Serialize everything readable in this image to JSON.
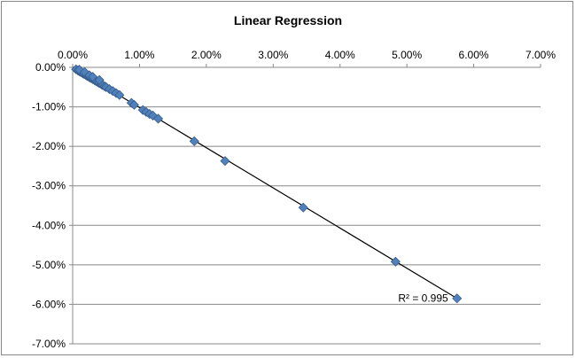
{
  "chart_data": {
    "type": "scatter",
    "title": "Linear Regression",
    "xlabel": "",
    "ylabel": "",
    "xlim": [
      0,
      0.07
    ],
    "ylim": [
      -0.07,
      0
    ],
    "x_ticks": [
      "0.00%",
      "1.00%",
      "2.00%",
      "3.00%",
      "4.00%",
      "5.00%",
      "6.00%",
      "7.00%"
    ],
    "y_ticks": [
      "0.00%",
      "-1.00%",
      "-2.00%",
      "-3.00%",
      "-4.00%",
      "-5.00%",
      "-6.00%",
      "-7.00%"
    ],
    "x_axis_position": "top",
    "grid": {
      "horizontal": true,
      "vertical": false
    },
    "legend": "none",
    "colors": {
      "marker": "#4F81BD",
      "marker_edge": "#385D8A",
      "trendline": "#000000",
      "grid": "#888888"
    },
    "points": [
      [
        0.0005,
        -0.0005
      ],
      [
        0.0008,
        -0.0008
      ],
      [
        0.001,
        -0.001
      ],
      [
        0.0012,
        -0.0012
      ],
      [
        0.0015,
        -0.0015
      ],
      [
        0.0017,
        -0.0017
      ],
      [
        0.002,
        -0.002
      ],
      [
        0.0022,
        -0.0022
      ],
      [
        0.0025,
        -0.0025
      ],
      [
        0.0027,
        -0.0027
      ],
      [
        0.003,
        -0.003
      ],
      [
        0.0033,
        -0.0033
      ],
      [
        0.0035,
        -0.0035
      ],
      [
        0.0038,
        -0.0038
      ],
      [
        0.004,
        -0.004
      ],
      [
        0.0043,
        -0.0043
      ],
      [
        0.0045,
        -0.0045
      ],
      [
        0.0048,
        -0.0048
      ],
      [
        0.005,
        -0.005
      ],
      [
        0.0055,
        -0.0055
      ],
      [
        0.006,
        -0.006
      ],
      [
        0.0065,
        -0.0065
      ],
      [
        0.007,
        -0.007
      ],
      [
        0.001,
        -0.0006
      ],
      [
        0.0018,
        -0.0012
      ],
      [
        0.0025,
        -0.002
      ],
      [
        0.003,
        -0.0024
      ],
      [
        0.004,
        -0.0032
      ],
      [
        0.0088,
        -0.009
      ],
      [
        0.0092,
        -0.0095
      ],
      [
        0.0105,
        -0.0108
      ],
      [
        0.011,
        -0.0113
      ],
      [
        0.0115,
        -0.0118
      ],
      [
        0.012,
        -0.0122
      ],
      [
        0.0128,
        -0.013
      ],
      [
        0.0182,
        -0.0187
      ],
      [
        0.0228,
        -0.0237
      ],
      [
        0.0345,
        -0.0355
      ],
      [
        0.0483,
        -0.0492
      ],
      [
        0.0575,
        -0.0585
      ]
    ],
    "trendline": {
      "x_start": 0.0,
      "y_start": 0.0,
      "x_end": 0.0575,
      "y_end": -0.0585
    },
    "annotations": [
      {
        "text": "R² = 0.995"
      }
    ]
  }
}
